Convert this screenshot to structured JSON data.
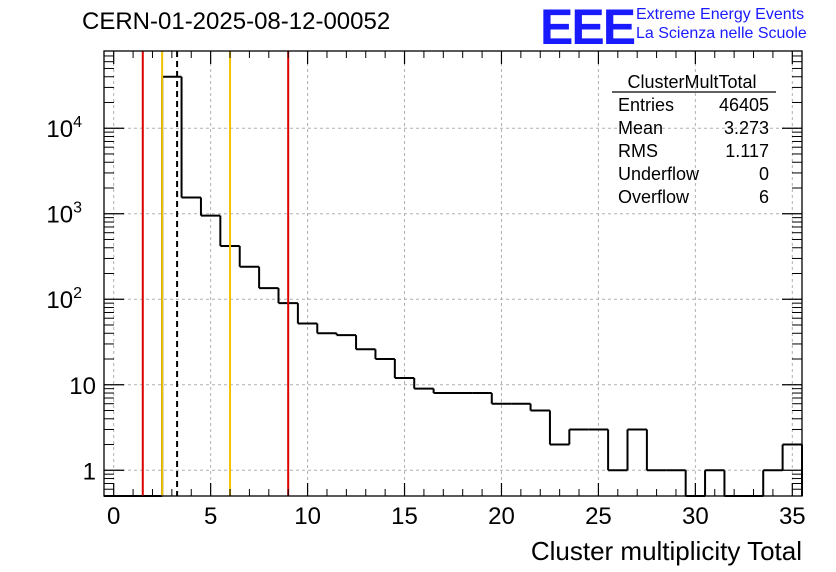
{
  "header": {
    "title": "CERN-01-2025-08-12-00052",
    "logo_text": "EEE",
    "logo_line1": "Extreme Energy Events",
    "logo_line2": "La Scienza nelle Scuole",
    "logo_color": "#1a1aff"
  },
  "stats": {
    "name": "ClusterMultTotal",
    "rows": [
      {
        "label": "Entries",
        "value": "46405"
      },
      {
        "label": "Mean",
        "value": "3.273"
      },
      {
        "label": "RMS",
        "value": "1.117"
      },
      {
        "label": "Underflow",
        "value": "0"
      },
      {
        "label": "Overflow",
        "value": "6"
      }
    ]
  },
  "chart_data": {
    "type": "histogram",
    "title": "CERN-01-2025-08-12-00052",
    "xlabel": "Cluster multiplicity Total",
    "ylabel": "",
    "yscale": "log",
    "xlim": [
      -0.5,
      35.5
    ],
    "ylim": [
      0.5,
      80000
    ],
    "grid": true,
    "x_ticks": [
      "0",
      "5",
      "10",
      "15",
      "20",
      "25",
      "30",
      "35"
    ],
    "y_ticks": [
      "1",
      "10",
      "10^2",
      "10^3",
      "10^4"
    ],
    "bin_width": 1,
    "bin_centers": [
      0,
      1,
      2,
      3,
      4,
      5,
      6,
      7,
      8,
      9,
      10,
      11,
      12,
      13,
      14,
      15,
      16,
      17,
      18,
      19,
      20,
      21,
      22,
      23,
      24,
      25,
      26,
      27,
      28,
      29,
      30,
      31,
      32,
      33,
      34,
      35
    ],
    "counts": [
      0,
      0,
      0,
      40000,
      1550,
      950,
      420,
      240,
      135,
      90,
      52,
      40,
      38,
      26,
      20,
      12,
      9,
      8,
      8,
      8,
      6,
      6,
      5,
      2,
      3,
      3,
      1,
      3,
      1,
      1,
      0,
      1,
      0,
      0,
      1,
      2
    ],
    "vertical_lines": [
      {
        "x": 1.5,
        "color": "#dd0000",
        "style": "solid"
      },
      {
        "x": 2.5,
        "color": "#f2c200",
        "style": "solid"
      },
      {
        "x": 3.27,
        "color": "#000000",
        "style": "dashed"
      },
      {
        "x": 6.0,
        "color": "#f2c200",
        "style": "solid"
      },
      {
        "x": 9.0,
        "color": "#dd0000",
        "style": "solid"
      }
    ]
  }
}
